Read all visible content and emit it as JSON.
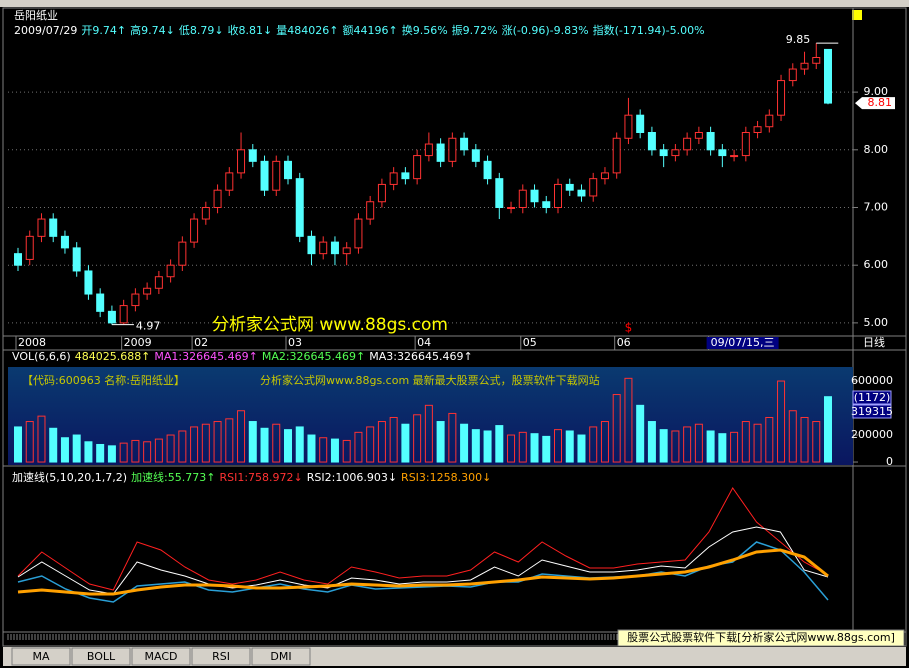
{
  "window": {
    "title": "岳阳纸业",
    "tabs": [
      "MA",
      "BOLL",
      "MACD",
      "RSI",
      "DMI"
    ],
    "footer": "股票公式股票软件下载[分析家公式网www.88gs.com]",
    "period": "日线"
  },
  "chart_data": [
    {
      "type": "candlestick",
      "info": {
        "texts": [
          "2009/07/29",
          "开9.74↑",
          "高9.74↓",
          "低8.79↓",
          "收8.81↓",
          "量484026↑",
          "额44196↑",
          "换9.56%",
          "振9.72%",
          "涨(-0.96)-9.83%",
          "指数(-171.94)-5.00%"
        ],
        "colors": [
          "#ffffff",
          "#54ffff",
          "#54ffff",
          "#54ffff",
          "#54ffff",
          "#54ffff",
          "#54ffff",
          "#54ffff",
          "#54ffff",
          "#54ffff",
          "#54ffff"
        ]
      },
      "watermark": "分析家公式网 www.88gs.com",
      "signal": "$",
      "signal_index": 52,
      "categories": [
        "2008",
        null,
        null,
        null,
        null,
        null,
        null,
        null,
        null,
        "2009",
        null,
        null,
        null,
        null,
        null,
        "02",
        null,
        null,
        null,
        null,
        null,
        null,
        null,
        "03",
        null,
        null,
        null,
        null,
        null,
        null,
        null,
        null,
        null,
        null,
        "04",
        null,
        null,
        null,
        null,
        null,
        null,
        null,
        null,
        "05",
        null,
        null,
        null,
        null,
        null,
        null,
        null,
        "06",
        null,
        null,
        null,
        null,
        null,
        null,
        null,
        "09/07/15,三",
        null,
        null,
        null,
        null,
        null,
        null,
        null,
        null,
        null,
        null
      ],
      "highlight_category": 59,
      "open": [
        6.2,
        6.1,
        6.5,
        6.8,
        6.5,
        6.3,
        5.9,
        5.5,
        5.2,
        5.0,
        5.3,
        5.5,
        5.6,
        5.8,
        6.0,
        6.4,
        6.8,
        7.0,
        7.3,
        7.6,
        8.0,
        7.8,
        7.3,
        7.8,
        7.5,
        6.5,
        6.2,
        6.4,
        6.2,
        6.3,
        6.8,
        7.1,
        7.4,
        7.6,
        7.5,
        7.9,
        8.1,
        7.8,
        8.2,
        8.0,
        7.8,
        7.5,
        7.0,
        7.0,
        7.3,
        7.1,
        7.0,
        7.4,
        7.3,
        7.2,
        7.5,
        7.6,
        8.2,
        8.6,
        8.3,
        8.0,
        7.9,
        8.0,
        8.2,
        8.3,
        8.0,
        7.9,
        7.9,
        8.3,
        8.4,
        8.6,
        9.2,
        9.4,
        9.5,
        9.74
      ],
      "high": [
        6.3,
        6.6,
        6.9,
        6.9,
        6.6,
        6.4,
        6.0,
        5.6,
        5.3,
        5.4,
        5.6,
        5.7,
        5.9,
        6.1,
        6.5,
        6.9,
        7.1,
        7.4,
        7.7,
        8.3,
        8.1,
        7.9,
        7.9,
        7.9,
        7.6,
        6.6,
        6.5,
        6.5,
        6.4,
        6.9,
        7.2,
        7.5,
        7.7,
        7.7,
        8.0,
        8.3,
        8.2,
        8.3,
        8.3,
        8.1,
        7.9,
        7.6,
        7.1,
        7.4,
        7.4,
        7.2,
        7.5,
        7.5,
        7.4,
        7.6,
        7.7,
        8.3,
        8.9,
        8.7,
        8.4,
        8.1,
        8.1,
        8.3,
        8.4,
        8.4,
        8.1,
        8.0,
        8.4,
        8.5,
        8.7,
        9.3,
        9.5,
        9.7,
        9.85,
        9.74
      ],
      "low": [
        5.9,
        6.0,
        6.4,
        6.4,
        6.2,
        5.8,
        5.4,
        5.1,
        4.97,
        4.98,
        5.2,
        5.4,
        5.5,
        5.7,
        5.9,
        6.3,
        6.7,
        6.9,
        7.2,
        7.5,
        7.7,
        7.2,
        7.2,
        7.4,
        6.4,
        6.0,
        6.1,
        6.0,
        6.0,
        6.2,
        6.7,
        7.0,
        7.3,
        7.4,
        7.4,
        7.8,
        7.7,
        7.7,
        7.9,
        7.7,
        7.4,
        6.8,
        6.9,
        6.9,
        7.0,
        6.9,
        6.9,
        7.2,
        7.1,
        7.1,
        7.4,
        7.5,
        8.1,
        8.2,
        7.9,
        7.7,
        7.8,
        7.9,
        8.1,
        7.9,
        7.7,
        7.8,
        7.8,
        8.2,
        8.3,
        8.5,
        9.1,
        9.3,
        9.4,
        8.79
      ],
      "close": [
        6.0,
        6.5,
        6.8,
        6.5,
        6.3,
        5.9,
        5.5,
        5.2,
        5.0,
        5.3,
        5.5,
        5.6,
        5.8,
        6.0,
        6.4,
        6.8,
        7.0,
        7.3,
        7.6,
        8.0,
        7.8,
        7.3,
        7.8,
        7.5,
        6.5,
        6.2,
        6.4,
        6.2,
        6.3,
        6.8,
        7.1,
        7.4,
        7.6,
        7.5,
        7.9,
        8.1,
        7.8,
        8.2,
        8.0,
        7.8,
        7.5,
        7.0,
        7.0,
        7.3,
        7.1,
        7.0,
        7.4,
        7.3,
        7.2,
        7.5,
        7.6,
        8.2,
        8.6,
        8.3,
        8.0,
        7.9,
        8.0,
        8.2,
        8.3,
        8.0,
        7.9,
        7.9,
        8.3,
        8.4,
        8.6,
        9.2,
        9.4,
        9.5,
        9.6,
        8.81
      ],
      "up_color": "#ff3232",
      "down_color": "#54ffff",
      "annotations": [
        {
          "index": 68,
          "value": 9.85
        },
        {
          "index": 8,
          "value": 4.97
        }
      ],
      "last_price": 8.81,
      "ylim": [
        4.79,
        10.25
      ],
      "yticks": [
        {
          "value": 5,
          "label": "5.00"
        },
        {
          "value": 6,
          "label": "6.00"
        },
        {
          "value": 7,
          "label": "7.00"
        },
        {
          "value": 8,
          "label": "8.00"
        },
        {
          "value": 9,
          "label": "9.00"
        }
      ],
      "grid": true
    },
    {
      "type": "bar",
      "header": {
        "texts": [
          "VOL(6,6,6)",
          "484025.688↑",
          "MA1:326645.469↑",
          "MA2:326645.469↑",
          "MA3:326645.469↑"
        ],
        "colors": [
          "#ffffff",
          "#ffff54",
          "#ff54ff",
          "#54ff54",
          "#ffffff"
        ]
      },
      "notes": [
        "【代码:600963 名称:岳阳纸业】",
        "分析家公式网www.88gs.com 最新最大股票公式，股票软件下载网站"
      ],
      "side_labels": [
        "(1172)",
        "319315"
      ],
      "values": [
        260000,
        300000,
        340000,
        250000,
        180000,
        200000,
        150000,
        130000,
        120000,
        140000,
        160000,
        150000,
        170000,
        200000,
        230000,
        260000,
        280000,
        300000,
        320000,
        380000,
        300000,
        250000,
        280000,
        240000,
        260000,
        200000,
        180000,
        170000,
        160000,
        220000,
        260000,
        300000,
        330000,
        280000,
        350000,
        420000,
        300000,
        360000,
        280000,
        240000,
        230000,
        270000,
        200000,
        220000,
        210000,
        190000,
        240000,
        230000,
        200000,
        260000,
        300000,
        500000,
        620000,
        420000,
        300000,
        240000,
        230000,
        260000,
        280000,
        230000,
        210000,
        220000,
        300000,
        280000,
        330000,
        600000,
        380000,
        330000,
        300000,
        484026
      ],
      "ylim": [
        -22000,
        704000
      ],
      "yticks": [
        0,
        200000,
        600000
      ]
    },
    {
      "type": "line",
      "header": {
        "texts": [
          "加速线(5,10,20,1,7,2)",
          "加速线:55.773↑",
          "RSI1:758.972↓",
          "RSI2:1006.903↓",
          "RSI3:1258.300↓"
        ],
        "colors": [
          "#ffffff",
          "#54ff54",
          "#ff3232",
          "#ffffff",
          "#ffa000"
        ]
      },
      "ylim": [
        0,
        1600
      ],
      "series": [
        {
          "color": "#ff2020",
          "width": 1,
          "values": [
            560,
            800,
            640,
            480,
            420,
            900,
            820,
            650,
            520,
            480,
            520,
            600,
            520,
            480,
            650,
            600,
            540,
            560,
            560,
            620,
            800,
            700,
            900,
            760,
            640,
            640,
            680,
            700,
            720,
            1000,
            1440,
            1100,
            900,
            700,
            570
          ]
        },
        {
          "color": "#ffffff",
          "width": 1,
          "values": [
            550,
            700,
            560,
            420,
            380,
            700,
            620,
            560,
            480,
            440,
            470,
            520,
            470,
            440,
            540,
            520,
            480,
            500,
            500,
            520,
            650,
            560,
            720,
            660,
            600,
            600,
            620,
            660,
            640,
            850,
            1000,
            1050,
            1000,
            620,
            550
          ]
        },
        {
          "color": "#2a9fd6",
          "width": 1.5,
          "values": [
            500,
            560,
            430,
            340,
            300,
            460,
            480,
            500,
            420,
            400,
            440,
            480,
            430,
            400,
            470,
            430,
            440,
            450,
            460,
            450,
            500,
            500,
            580,
            560,
            540,
            550,
            560,
            600,
            560,
            660,
            700,
            900,
            820,
            600,
            320
          ]
        },
        {
          "color": "#ffa000",
          "width": 3,
          "values": [
            400,
            420,
            400,
            380,
            380,
            420,
            450,
            470,
            470,
            460,
            440,
            440,
            450,
            460,
            480,
            470,
            460,
            470,
            470,
            480,
            500,
            520,
            550,
            540,
            530,
            540,
            560,
            580,
            600,
            650,
            720,
            800,
            820,
            750,
            560
          ]
        }
      ]
    }
  ]
}
